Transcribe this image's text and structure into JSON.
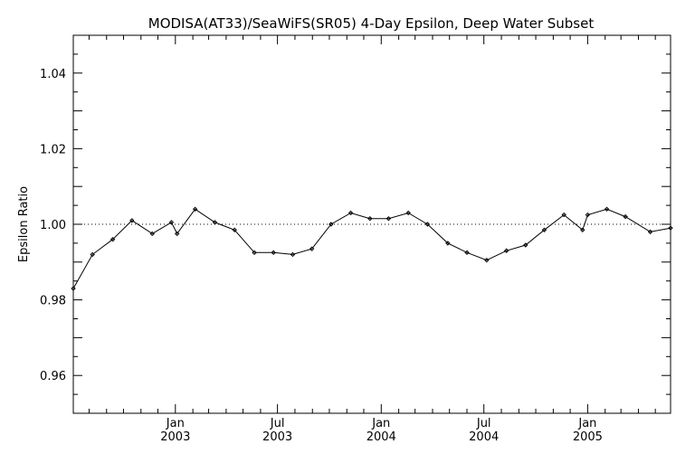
{
  "chart_data": {
    "type": "line",
    "title": "MODISA(AT33)/SeaWiFS(SR05) 4-Day Epsilon, Deep Water Subset",
    "xlabel": "",
    "ylabel": "Epsilon Ratio",
    "xlim": [
      "2002-07-04",
      "2005-05-28"
    ],
    "ylim": [
      0.95,
      1.05
    ],
    "yticks": [
      "0.96",
      "0.98",
      "1.00",
      "1.02",
      "1.04"
    ],
    "xticks": [
      {
        "date": "2003-01-01",
        "month": "Jan",
        "year": "2003"
      },
      {
        "date": "2003-07-01",
        "month": "Jul",
        "year": "2003"
      },
      {
        "date": "2004-01-01",
        "month": "Jan",
        "year": "2004"
      },
      {
        "date": "2004-07-01",
        "month": "Jul",
        "year": "2004"
      },
      {
        "date": "2005-01-01",
        "month": "Jan",
        "year": "2005"
      }
    ],
    "reference_line": {
      "y": 1.0,
      "style": "dotted"
    },
    "grid": false,
    "series": [
      {
        "x": [
          "2002-07-04",
          "2002-08-07",
          "2002-09-12",
          "2002-10-16",
          "2002-11-21",
          "2002-12-25",
          "2003-01-04",
          "2003-02-05",
          "2003-03-12",
          "2003-04-16",
          "2003-05-21",
          "2003-06-24",
          "2003-07-28",
          "2003-08-31",
          "2003-10-04",
          "2003-11-08",
          "2003-12-12",
          "2004-01-14",
          "2004-02-18",
          "2004-03-23",
          "2004-04-28",
          "2004-06-01",
          "2004-07-06",
          "2004-08-10",
          "2004-09-13",
          "2004-10-16",
          "2004-11-20",
          "2004-12-23",
          "2005-01-01",
          "2005-02-04",
          "2005-03-09",
          "2005-04-22",
          "2005-05-28"
        ],
        "y": [
          0.983,
          0.992,
          0.996,
          1.001,
          0.9975,
          1.0005,
          0.9975,
          1.004,
          1.0005,
          0.9985,
          0.9925,
          0.9925,
          0.992,
          0.9935,
          1.0,
          1.003,
          1.0015,
          1.0015,
          1.003,
          1.0,
          0.995,
          0.9925,
          0.9905,
          0.993,
          0.9945,
          0.9985,
          1.0025,
          0.9985,
          1.0025,
          1.004,
          1.002,
          0.998,
          0.999
        ]
      }
    ]
  }
}
